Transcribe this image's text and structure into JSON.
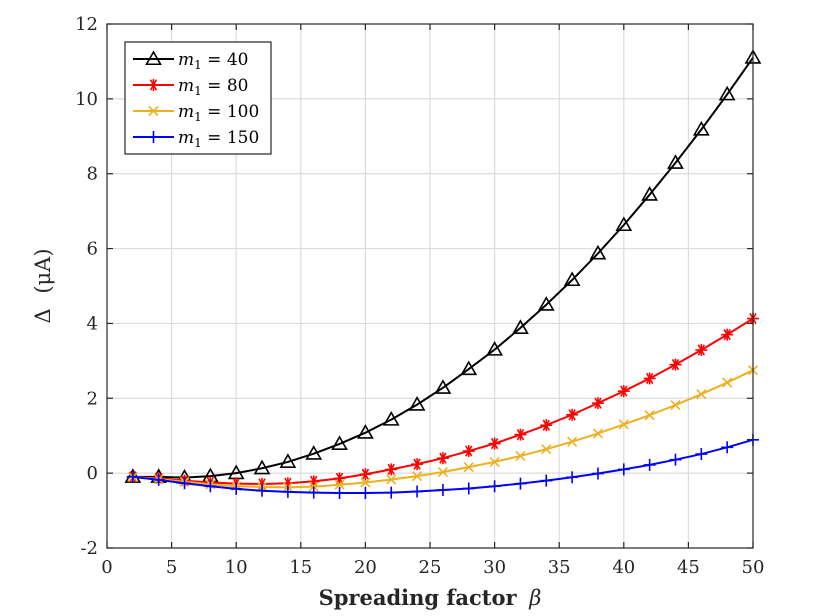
{
  "chart_data": {
    "type": "line",
    "title": "",
    "xlabel_text": "Spreading factor",
    "xlabel_symbol": "β",
    "ylabel_symbol": "Δ",
    "ylabel_unit": "(μA)",
    "xlim": [
      0,
      50
    ],
    "ylim": [
      -2,
      12
    ],
    "xticks": [
      0,
      5,
      10,
      15,
      20,
      25,
      30,
      35,
      40,
      45,
      50
    ],
    "yticks": [
      -2,
      0,
      2,
      4,
      6,
      8,
      10,
      12
    ],
    "grid": true,
    "legend_position": "top-left",
    "x": [
      2,
      4,
      6,
      8,
      10,
      12,
      14,
      16,
      18,
      20,
      22,
      24,
      26,
      28,
      30,
      32,
      34,
      36,
      38,
      40,
      42,
      44,
      46,
      48,
      50
    ],
    "series": [
      {
        "name": "m1 = 40",
        "legend_var": "m",
        "legend_sub": "1",
        "legend_val": " = 40",
        "color": "#000000",
        "marker": "triangle",
        "values": [
          -0.1,
          -0.1,
          -0.12,
          -0.08,
          0.0,
          0.13,
          0.3,
          0.52,
          0.78,
          1.08,
          1.43,
          1.83,
          2.28,
          2.78,
          3.3,
          3.88,
          4.5,
          5.16,
          5.87,
          6.63,
          7.44,
          8.29,
          9.18,
          10.12,
          11.1
        ]
      },
      {
        "name": "m1 = 80",
        "legend_var": "m",
        "legend_sub": "1",
        "legend_val": " = 80",
        "color": "#ff0000",
        "marker": "asterisk",
        "values": [
          -0.1,
          -0.14,
          -0.2,
          -0.25,
          -0.28,
          -0.29,
          -0.27,
          -0.22,
          -0.14,
          -0.03,
          0.1,
          0.24,
          0.4,
          0.59,
          0.79,
          1.03,
          1.28,
          1.56,
          1.87,
          2.19,
          2.53,
          2.9,
          3.29,
          3.7,
          4.13
        ]
      },
      {
        "name": "m1 = 100",
        "legend_var": "m",
        "legend_sub": "1",
        "legend_val": " = 100",
        "color": "#edb120",
        "marker": "x",
        "values": [
          -0.1,
          -0.16,
          -0.23,
          -0.3,
          -0.35,
          -0.37,
          -0.38,
          -0.36,
          -0.31,
          -0.25,
          -0.17,
          -0.08,
          0.03,
          0.16,
          0.3,
          0.46,
          0.64,
          0.84,
          1.06,
          1.3,
          1.55,
          1.82,
          2.11,
          2.42,
          2.75
        ]
      },
      {
        "name": "m1 = 150",
        "legend_var": "m",
        "legend_sub": "1",
        "legend_val": " = 150",
        "color": "#0000ff",
        "marker": "plus",
        "values": [
          -0.1,
          -0.18,
          -0.27,
          -0.35,
          -0.42,
          -0.47,
          -0.5,
          -0.52,
          -0.53,
          -0.53,
          -0.52,
          -0.49,
          -0.45,
          -0.41,
          -0.35,
          -0.28,
          -0.2,
          -0.11,
          -0.01,
          0.1,
          0.22,
          0.36,
          0.51,
          0.69,
          0.89
        ]
      }
    ]
  }
}
